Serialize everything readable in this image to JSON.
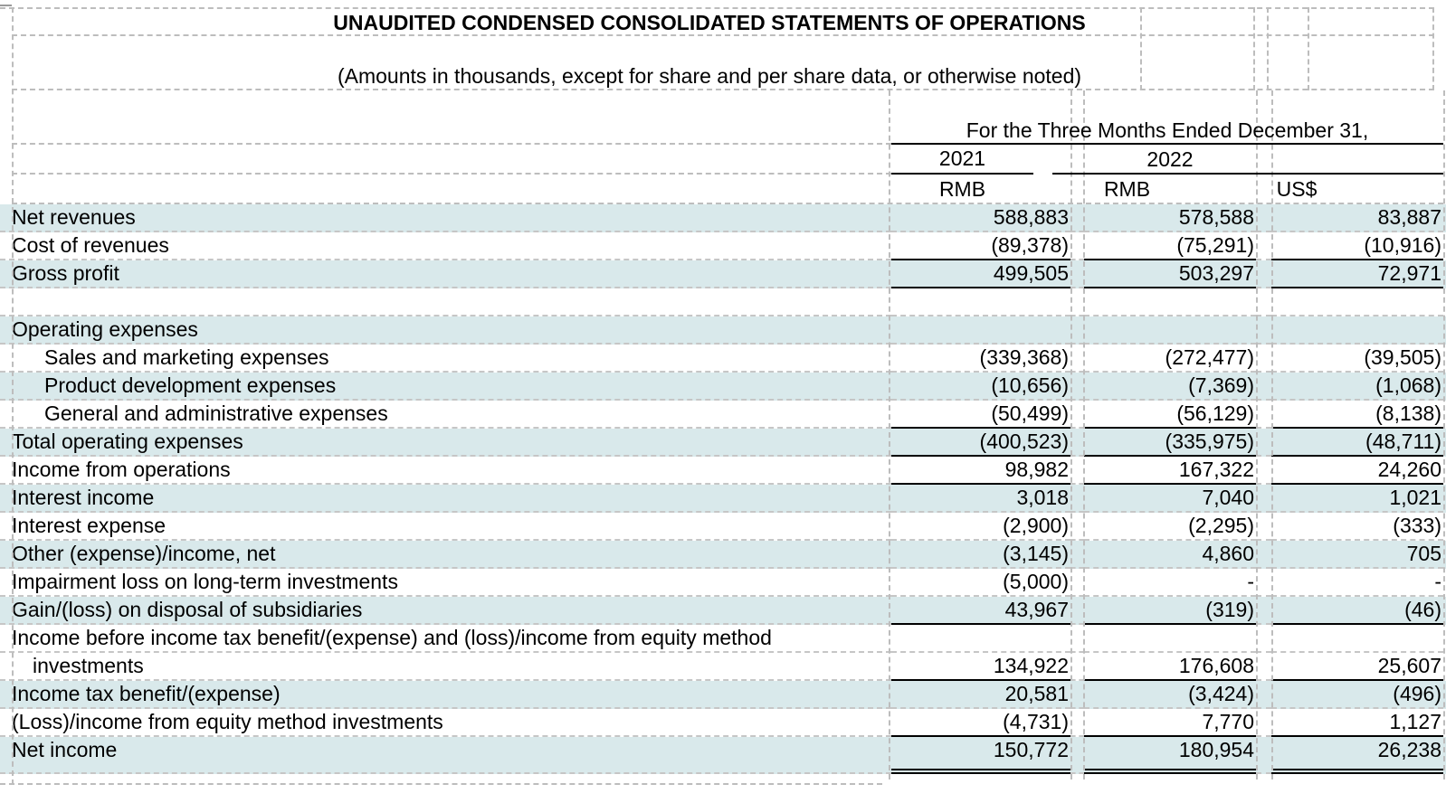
{
  "title": "UNAUDITED CONDENSED CONSOLIDATED STATEMENTS OF OPERATIONS",
  "subtitle": "(Amounts in thousands, except for share and per share data, or otherwise noted)",
  "header": {
    "period": "For the Three Months Ended December 31,",
    "years": [
      "2021",
      "2022"
    ],
    "currencies": [
      "RMB",
      "RMB",
      "US$"
    ]
  },
  "colors": {
    "row_highlight": "#d9e9eb",
    "gridline": "#bdbdbd",
    "rule": "#000000"
  },
  "rows": [
    {
      "label": "Net revenues",
      "indent": 0,
      "highlight": true,
      "values": [
        "588,883",
        "578,588",
        "83,887"
      ],
      "rule_below": false
    },
    {
      "label": "Cost of revenues",
      "indent": 0,
      "highlight": false,
      "values": [
        "(89,378)",
        "(75,291)",
        "(10,916)"
      ],
      "rule_below": true
    },
    {
      "label": "Gross profit",
      "indent": 0,
      "highlight": true,
      "values": [
        "499,505",
        "503,297",
        "72,971"
      ],
      "rule_below": true
    },
    {
      "label": "",
      "indent": 0,
      "highlight": false,
      "values": [
        "",
        "",
        ""
      ],
      "rule_below": false
    },
    {
      "label": "Operating expenses",
      "indent": 0,
      "highlight": true,
      "values": [
        "",
        "",
        ""
      ],
      "rule_below": false
    },
    {
      "label": "Sales and marketing expenses",
      "indent": 1,
      "highlight": false,
      "values": [
        "(339,368)",
        "(272,477)",
        "(39,505)"
      ],
      "rule_below": false
    },
    {
      "label": "Product development expenses",
      "indent": 1,
      "highlight": true,
      "values": [
        "(10,656)",
        "(7,369)",
        "(1,068)"
      ],
      "rule_below": false
    },
    {
      "label": "General and administrative expenses",
      "indent": 1,
      "highlight": false,
      "values": [
        "(50,499)",
        "(56,129)",
        "(8,138)"
      ],
      "rule_below": true
    },
    {
      "label": "Total operating expenses",
      "indent": 0,
      "highlight": true,
      "values": [
        "(400,523)",
        "(335,975)",
        "(48,711)"
      ],
      "rule_below": true
    },
    {
      "label": "Income from operations",
      "indent": 0,
      "highlight": false,
      "values": [
        "98,982",
        "167,322",
        "24,260"
      ],
      "rule_below": true
    },
    {
      "label": "Interest income",
      "indent": 0,
      "highlight": true,
      "values": [
        "3,018",
        "7,040",
        "1,021"
      ],
      "rule_below": false
    },
    {
      "label": "Interest expense",
      "indent": 0,
      "highlight": false,
      "values": [
        "(2,900)",
        "(2,295)",
        "(333)"
      ],
      "rule_below": false
    },
    {
      "label": "Other (expense)/income, net",
      "indent": 0,
      "highlight": true,
      "values": [
        "(3,145)",
        "4,860",
        "705"
      ],
      "rule_below": false
    },
    {
      "label": "Impairment loss on long-term investments",
      "indent": 0,
      "highlight": false,
      "values": [
        "(5,000)",
        "-",
        "-"
      ],
      "rule_below": false
    },
    {
      "label": "Gain/(loss) on disposal of subsidiaries",
      "indent": 0,
      "highlight": true,
      "values": [
        "43,967",
        "(319)",
        "(46)"
      ],
      "rule_below": true
    },
    {
      "label": "Income before income tax benefit/(expense) and (loss)/income from equity method",
      "indent": 0,
      "highlight": false,
      "values": [
        "",
        "",
        ""
      ],
      "rule_below": false
    },
    {
      "label": "investments",
      "indent": 2,
      "highlight": false,
      "values": [
        "134,922",
        "176,608",
        "25,607"
      ],
      "rule_below": true
    },
    {
      "label": "Income tax benefit/(expense)",
      "indent": 0,
      "highlight": true,
      "values": [
        "20,581",
        "(3,424)",
        "(496)"
      ],
      "rule_below": false
    },
    {
      "label": "(Loss)/income from equity method investments",
      "indent": 0,
      "highlight": false,
      "values": [
        "(4,731)",
        "7,770",
        "1,127"
      ],
      "rule_below": true
    },
    {
      "label": "Net income",
      "indent": 0,
      "highlight": true,
      "values": [
        "150,772",
        "180,954",
        "26,238"
      ],
      "rule_below": false,
      "separator_below": false
    },
    {
      "label": "",
      "indent": 0,
      "highlight": true,
      "values": [
        "",
        "",
        ""
      ],
      "rule_below": false,
      "thin": true,
      "double_rule_below": true
    }
  ]
}
